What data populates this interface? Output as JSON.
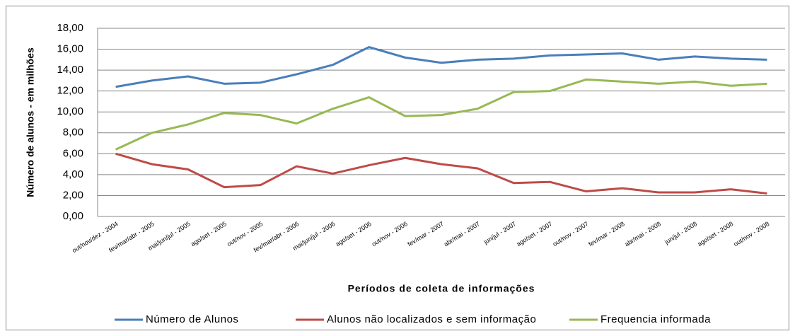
{
  "chart_data": {
    "type": "line",
    "categories": [
      "out/nov/dez - 2004",
      "fev/mar/abr - 2005",
      "mai/jun/jul - 2005",
      "ago/set - 2005",
      "out/nov - 2005",
      "fev/mar/abr - 2006",
      "mai/jun/jul - 2006",
      "ago/set - 2006",
      "out/nov - 2006",
      "fev/mar - 2007",
      "abr/mai - 2007",
      "jun/jul - 2007",
      "ago/set - 2007",
      "out/nov - 2007",
      "fev/mar - 2008",
      "abr/mai - 2008",
      "jun/jul - 2008",
      "ago/set - 2008",
      "out/nov - 2008"
    ],
    "series": [
      {
        "name": "Número de Alunos",
        "color": "#4a7ebb",
        "values": [
          12.4,
          13.0,
          13.4,
          12.7,
          12.8,
          13.6,
          14.5,
          16.2,
          15.2,
          14.7,
          15.0,
          15.1,
          15.4,
          15.5,
          15.6,
          15.0,
          15.3,
          15.1,
          15.0
        ]
      },
      {
        "name": "Alunos não localizados  e sem informação",
        "color": "#be4b48",
        "values": [
          6.0,
          5.0,
          4.5,
          2.8,
          3.0,
          4.8,
          4.1,
          4.9,
          5.6,
          5.0,
          4.6,
          3.2,
          3.3,
          2.4,
          2.7,
          2.3,
          2.3,
          2.6,
          2.2
        ]
      },
      {
        "name": "Frequencia informada",
        "color": "#98b954",
        "values": [
          6.4,
          8.0,
          8.8,
          9.9,
          9.7,
          8.9,
          10.3,
          11.4,
          9.6,
          9.7,
          10.3,
          11.9,
          12.0,
          13.1,
          12.9,
          12.7,
          12.9,
          12.5,
          12.7
        ]
      }
    ],
    "ylim": [
      0,
      18
    ],
    "yticks": [
      {
        "value": 0,
        "label": "0,00"
      },
      {
        "value": 2,
        "label": "2,00"
      },
      {
        "value": 4,
        "label": "4,00"
      },
      {
        "value": 6,
        "label": "6,00"
      },
      {
        "value": 8,
        "label": "8,00"
      },
      {
        "value": 10,
        "label": "10,00"
      },
      {
        "value": 12,
        "label": "12,00"
      },
      {
        "value": 14,
        "label": "14,00"
      },
      {
        "value": 16,
        "label": "16,00"
      },
      {
        "value": 18,
        "label": "18,00"
      }
    ],
    "y_label": "Número de alunos  - em milhões",
    "x_label": "Períodos de coleta de informações",
    "grid": true,
    "legend": "bottom"
  }
}
